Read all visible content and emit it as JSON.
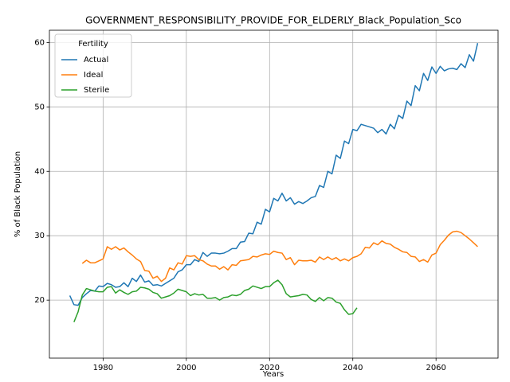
{
  "chart_data": {
    "type": "line",
    "title": "GOVERNMENT_RESPONSIBILITY_PROVIDE_FOR_ELDERLY_Black_Population_Sco",
    "xlabel": "Years",
    "ylabel": "% of Black Population",
    "legend_title": "Fertility",
    "legend": "upper left",
    "grid": true,
    "xlim": [
      1967.1,
      2074.9
    ],
    "ylim": [
      11,
      61.9
    ],
    "xticks": [
      1980,
      2000,
      2020,
      2040,
      2060
    ],
    "yticks": [
      20,
      30,
      40,
      50,
      60
    ],
    "x": [
      1972,
      1973,
      1974,
      1975,
      1976,
      1977,
      1978,
      1979,
      1980,
      1981,
      1982,
      1983,
      1984,
      1985,
      1986,
      1987,
      1988,
      1989,
      1990,
      1991,
      1992,
      1993,
      1994,
      1995,
      1996,
      1997,
      1998,
      1999,
      2000,
      2001,
      2002,
      2003,
      2004,
      2005,
      2006,
      2007,
      2008,
      2009,
      2010,
      2011,
      2012,
      2013,
      2014,
      2015,
      2016,
      2017,
      2018,
      2019,
      2020,
      2021,
      2022,
      2023,
      2024,
      2025,
      2026,
      2027,
      2028,
      2029,
      2030,
      2031,
      2032,
      2033,
      2034,
      2035,
      2036,
      2037,
      2038,
      2039,
      2040,
      2041,
      2042,
      2043,
      2044,
      2045,
      2046,
      2047,
      2048,
      2049,
      2050,
      2051,
      2052,
      2053,
      2054,
      2055,
      2056,
      2057,
      2058,
      2059,
      2060,
      2061,
      2062,
      2063,
      2064,
      2065,
      2066,
      2067,
      2068,
      2069,
      2070
    ],
    "series": [
      {
        "name": "Actual",
        "color": "#1f77b4",
        "values": [
          20.7,
          19.3,
          19.2,
          20.4,
          21.0,
          21.5,
          21.4,
          22.2,
          22.1,
          22.6,
          22.4,
          22.0,
          22.1,
          22.7,
          22.1,
          23.4,
          22.9,
          23.9,
          22.8,
          23.0,
          22.3,
          22.4,
          22.2,
          22.6,
          23.0,
          23.4,
          24.4,
          24.7,
          25.5,
          25.5,
          26.3,
          26.0,
          27.4,
          26.8,
          27.3,
          27.3,
          27.2,
          27.3,
          27.6,
          28.0,
          28.0,
          29.0,
          29.1,
          30.4,
          30.3,
          32.1,
          31.8,
          34.1,
          33.7,
          35.8,
          35.4,
          36.6,
          35.4,
          35.9,
          34.9,
          35.3,
          35.0,
          35.4,
          35.9,
          36.1,
          37.8,
          37.5,
          40.0,
          39.6,
          42.5,
          42.0,
          44.7,
          44.3,
          46.5,
          46.3,
          47.3,
          47.1,
          46.9,
          46.7,
          46.0,
          46.5,
          45.8,
          47.3,
          46.6,
          48.7,
          48.2,
          50.9,
          50.2,
          53.3,
          52.5,
          55.2,
          54.1,
          56.2,
          55.2,
          56.3,
          55.6,
          55.9,
          56.0,
          55.8,
          56.7,
          56.1,
          58.1,
          57.1,
          59.9
        ]
      },
      {
        "name": "Ideal",
        "color": "#ff7f0e",
        "values": [
          null,
          null,
          null,
          25.7,
          26.2,
          25.8,
          25.8,
          26.1,
          26.4,
          28.3,
          27.9,
          28.3,
          27.8,
          28.1,
          27.5,
          27.0,
          26.4,
          26.0,
          24.6,
          24.5,
          23.4,
          23.7,
          22.9,
          23.4,
          25.0,
          24.7,
          25.8,
          25.6,
          26.9,
          26.8,
          26.9,
          26.3,
          26.1,
          25.6,
          25.3,
          25.3,
          24.8,
          25.2,
          24.7,
          25.5,
          25.4,
          26.1,
          26.2,
          26.3,
          26.8,
          26.7,
          27.0,
          27.2,
          27.1,
          27.6,
          27.4,
          27.3,
          26.3,
          26.6,
          25.5,
          26.2,
          26.1,
          26.1,
          26.2,
          25.9,
          26.7,
          26.3,
          26.7,
          26.3,
          26.6,
          26.1,
          26.4,
          26.1,
          26.6,
          26.8,
          27.2,
          28.2,
          28.1,
          28.9,
          28.6,
          29.2,
          28.8,
          28.7,
          28.2,
          27.9,
          27.5,
          27.4,
          26.8,
          26.7,
          26.0,
          26.3,
          25.9,
          27.0,
          27.3,
          28.6,
          29.3,
          30.1,
          30.6,
          30.7,
          30.5,
          30.0,
          29.5,
          28.9,
          28.3
        ]
      },
      {
        "name": "Sterile",
        "color": "#2ca02c",
        "values": [
          null,
          16.6,
          18.2,
          20.8,
          21.8,
          21.6,
          21.4,
          21.3,
          21.3,
          22.0,
          22.1,
          21.1,
          21.6,
          21.2,
          20.9,
          21.3,
          21.4,
          22.0,
          21.9,
          21.7,
          21.2,
          21.0,
          20.3,
          20.5,
          20.7,
          21.1,
          21.7,
          21.5,
          21.3,
          20.7,
          21.0,
          20.8,
          20.9,
          20.3,
          20.3,
          20.4,
          20.0,
          20.4,
          20.5,
          20.8,
          20.7,
          20.9,
          21.5,
          21.7,
          22.2,
          22.0,
          21.8,
          22.1,
          22.1,
          22.7,
          23.1,
          22.4,
          21.0,
          20.5,
          20.6,
          20.7,
          20.9,
          20.8,
          20.1,
          19.8,
          20.4,
          19.9,
          20.4,
          20.3,
          19.7,
          19.5,
          18.5,
          17.8,
          17.9,
          18.8,
          null,
          null,
          null,
          null,
          null,
          null,
          null,
          null,
          null,
          null,
          null,
          null,
          null,
          null,
          null,
          null,
          null,
          null,
          null,
          null,
          null,
          null,
          null,
          null,
          null,
          null,
          null,
          null,
          null
        ]
      }
    ]
  }
}
